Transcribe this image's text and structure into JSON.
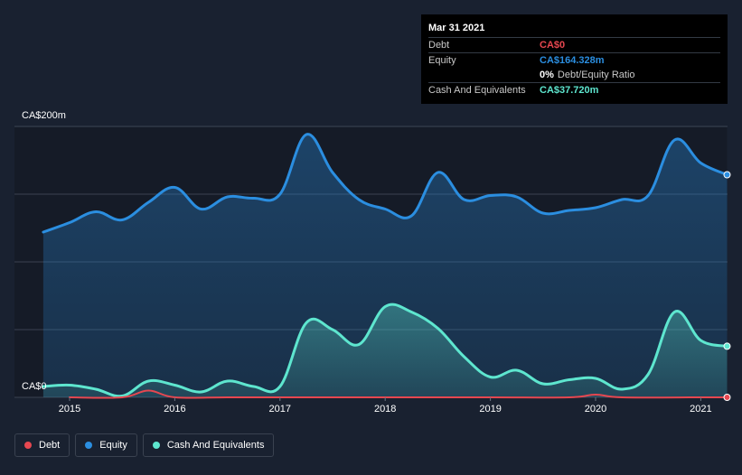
{
  "chart_data": {
    "type": "area",
    "y_tick_labels": {
      "top": "CA$200m",
      "bottom": "CA$0"
    },
    "ylim": [
      0,
      200
    ],
    "x_tick_labels": [
      "2015",
      "2016",
      "2017",
      "2018",
      "2019",
      "2020",
      "2021"
    ],
    "grid": true,
    "series": [
      {
        "name": "Equity",
        "color": "#2b8ee0",
        "points": [
          [
            2014.75,
            122
          ],
          [
            2015.0,
            129
          ],
          [
            2015.25,
            137
          ],
          [
            2015.5,
            131
          ],
          [
            2015.75,
            144
          ],
          [
            2016.0,
            155
          ],
          [
            2016.25,
            139
          ],
          [
            2016.5,
            148
          ],
          [
            2016.75,
            147
          ],
          [
            2017.0,
            150
          ],
          [
            2017.25,
            194
          ],
          [
            2017.5,
            166
          ],
          [
            2017.75,
            146
          ],
          [
            2018.0,
            139
          ],
          [
            2018.25,
            134
          ],
          [
            2018.5,
            166
          ],
          [
            2018.75,
            146
          ],
          [
            2019.0,
            149
          ],
          [
            2019.25,
            148
          ],
          [
            2019.5,
            136
          ],
          [
            2019.75,
            138
          ],
          [
            2020.0,
            140
          ],
          [
            2020.25,
            146
          ],
          [
            2020.5,
            149
          ],
          [
            2020.75,
            190
          ],
          [
            2021.0,
            173
          ],
          [
            2021.25,
            164.328
          ]
        ]
      },
      {
        "name": "Cash And Equivalents",
        "color": "#5ee6cf",
        "points": [
          [
            2014.75,
            8
          ],
          [
            2015.0,
            9
          ],
          [
            2015.25,
            6
          ],
          [
            2015.5,
            1
          ],
          [
            2015.75,
            12
          ],
          [
            2016.0,
            9
          ],
          [
            2016.25,
            4
          ],
          [
            2016.5,
            12
          ],
          [
            2016.75,
            8
          ],
          [
            2017.0,
            8
          ],
          [
            2017.25,
            55
          ],
          [
            2017.5,
            50
          ],
          [
            2017.75,
            39
          ],
          [
            2018.0,
            67
          ],
          [
            2018.25,
            63
          ],
          [
            2018.5,
            51
          ],
          [
            2018.75,
            30
          ],
          [
            2019.0,
            15
          ],
          [
            2019.25,
            20
          ],
          [
            2019.5,
            10
          ],
          [
            2019.75,
            13
          ],
          [
            2020.0,
            14
          ],
          [
            2020.25,
            6
          ],
          [
            2020.5,
            17
          ],
          [
            2020.75,
            63
          ],
          [
            2021.0,
            42
          ],
          [
            2021.25,
            37.72
          ]
        ]
      },
      {
        "name": "Debt",
        "color": "#e64750",
        "points": [
          [
            2015.0,
            0
          ],
          [
            2015.5,
            0
          ],
          [
            2015.75,
            5
          ],
          [
            2016.0,
            0
          ],
          [
            2016.5,
            0
          ],
          [
            2017.0,
            0
          ],
          [
            2018.0,
            0
          ],
          [
            2019.0,
            0
          ],
          [
            2019.75,
            0
          ],
          [
            2020.0,
            2
          ],
          [
            2020.25,
            0
          ],
          [
            2021.0,
            0
          ],
          [
            2021.25,
            0
          ]
        ]
      }
    ]
  },
  "tooltip": {
    "date": "Mar 31 2021",
    "rows": [
      {
        "label": "Debt",
        "value": "CA$0",
        "color": "#e64750"
      },
      {
        "label": "Equity",
        "value": "CA$164.328m",
        "color": "#2b8ee0"
      },
      {
        "label": "",
        "value": "0%",
        "sub": "Debt/Equity Ratio",
        "color": "#ffffff"
      },
      {
        "label": "Cash And Equivalents",
        "value": "CA$37.720m",
        "color": "#5ee6cf"
      }
    ]
  },
  "legend": [
    {
      "label": "Debt",
      "color": "#e64750"
    },
    {
      "label": "Equity",
      "color": "#2b8ee0"
    },
    {
      "label": "Cash And Equivalents",
      "color": "#5ee6cf"
    }
  ]
}
